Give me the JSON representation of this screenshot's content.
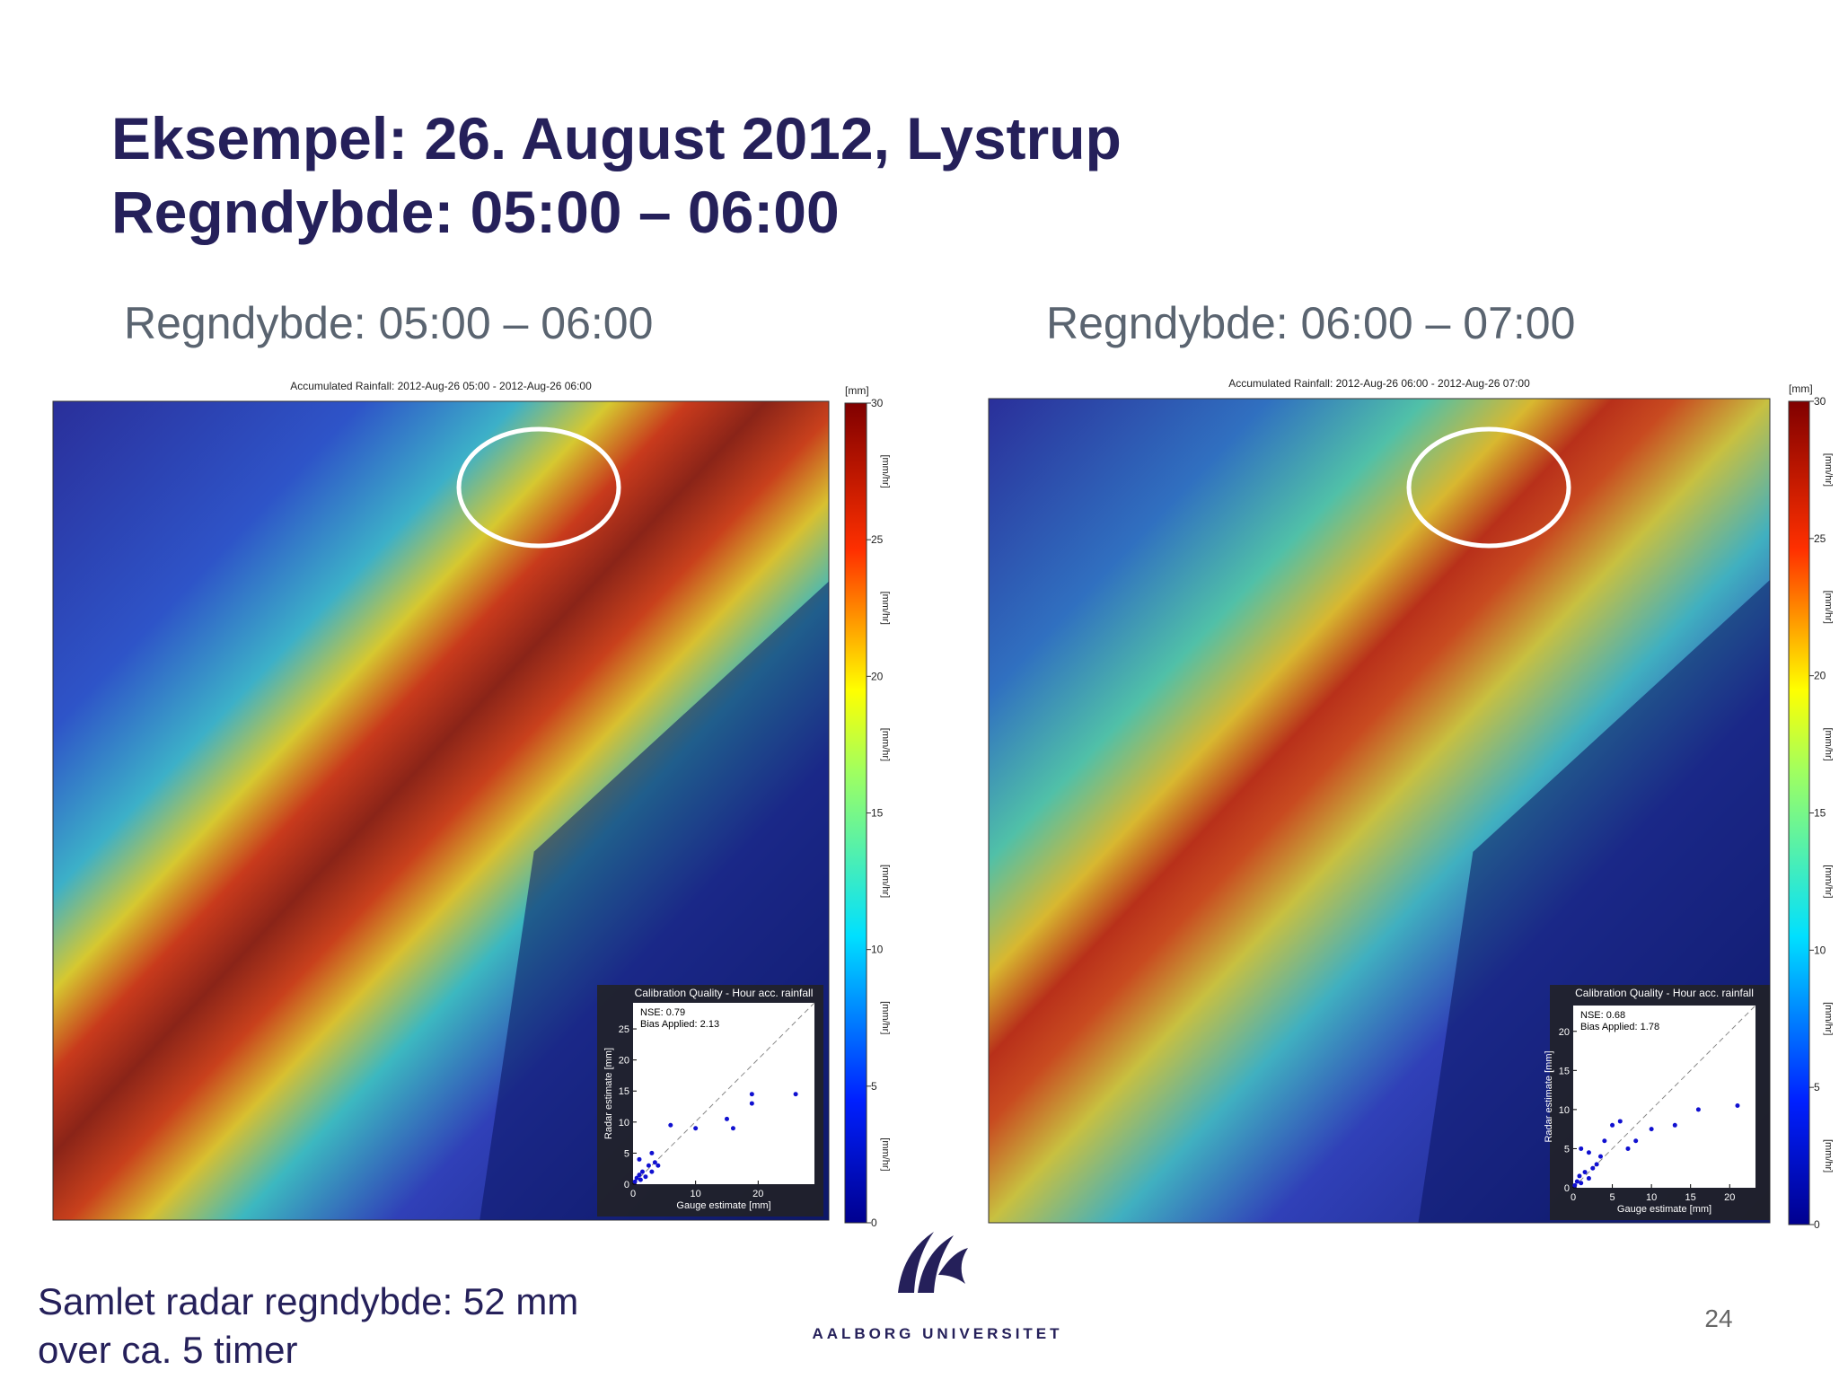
{
  "header": {
    "title_line1": "Eksempel: 26. August 2012, Lystrup",
    "title_line2": "Regndybde: 05:00 – 06:00"
  },
  "panels": [
    {
      "heading": "Regndybde: 05:00 – 06:00",
      "map_title": "Accumulated Rainfall: 2012-Aug-26 05:00 - 2012-Aug-26 06:00",
      "colorbar": {
        "unit": "[mm]",
        "axis_label": "[mm/hr]",
        "ticks": [
          0,
          5,
          10,
          15,
          20,
          25,
          30
        ],
        "range": [
          0,
          30
        ]
      },
      "inset": {
        "title": "Calibration Quality - Hour acc. rainfall",
        "nse": "NSE: 0.79",
        "bias": "Bias Applied: 2.13",
        "xlabel": "Gauge estimate [mm]",
        "ylabel": "Radar estimate [mm]",
        "xlim": [
          0,
          29
        ],
        "ylim": [
          0,
          29.2
        ],
        "xticks": [
          0,
          10,
          20
        ],
        "yticks": [
          0,
          5,
          10,
          15,
          20,
          25
        ],
        "points": {
          "x": [
            0.3,
            0.6,
            1,
            1.2,
            1.5,
            2,
            2.5,
            3,
            3.5,
            4,
            1,
            3,
            6,
            10,
            15,
            16,
            19,
            19,
            26
          ],
          "y": [
            0.4,
            1,
            1.5,
            0.7,
            2,
            1.2,
            3,
            2,
            3.5,
            3,
            4,
            5,
            9.5,
            9,
            10.5,
            9,
            13,
            14.5,
            14.5
          ]
        }
      }
    },
    {
      "heading": "Regndybde: 06:00 – 07:00",
      "map_title": "Accumulated Rainfall: 2012-Aug-26 06:00 - 2012-Aug-26 07:00",
      "colorbar": {
        "unit": "[mm]",
        "axis_label": "[mm/hr]",
        "ticks": [
          0,
          5,
          10,
          15,
          20,
          25,
          30
        ],
        "range": [
          0,
          30
        ]
      },
      "inset": {
        "title": "Calibration Quality - Hour acc. rainfall",
        "nse": "NSE: 0.68",
        "bias": "Bias Applied: 1.78",
        "xlabel": "Gauge estimate [mm]",
        "ylabel": "Radar estimate [mm]",
        "xlim": [
          0,
          23.3
        ],
        "ylim": [
          0,
          23.3
        ],
        "xticks": [
          0,
          5,
          10,
          15,
          20
        ],
        "yticks": [
          0,
          5,
          10,
          15,
          20
        ],
        "points": {
          "x": [
            0.2,
            0.5,
            0.8,
            1,
            1.5,
            2,
            2.5,
            3,
            3.5,
            1,
            2,
            4,
            5,
            6,
            7,
            8,
            10,
            13,
            16,
            21
          ],
          "y": [
            0.3,
            0.8,
            1.5,
            0.6,
            2,
            1.2,
            2.5,
            3,
            4,
            5,
            4.5,
            6,
            8,
            8.5,
            5,
            6,
            7.5,
            8,
            10,
            10.5
          ]
        }
      }
    }
  ],
  "footer": {
    "note_line1": "Samlet radar regndybde: 52 mm",
    "note_line2": "over ca. 5 timer",
    "logo_text": "AALBORG UNIVERSITET",
    "page_number": "24"
  }
}
